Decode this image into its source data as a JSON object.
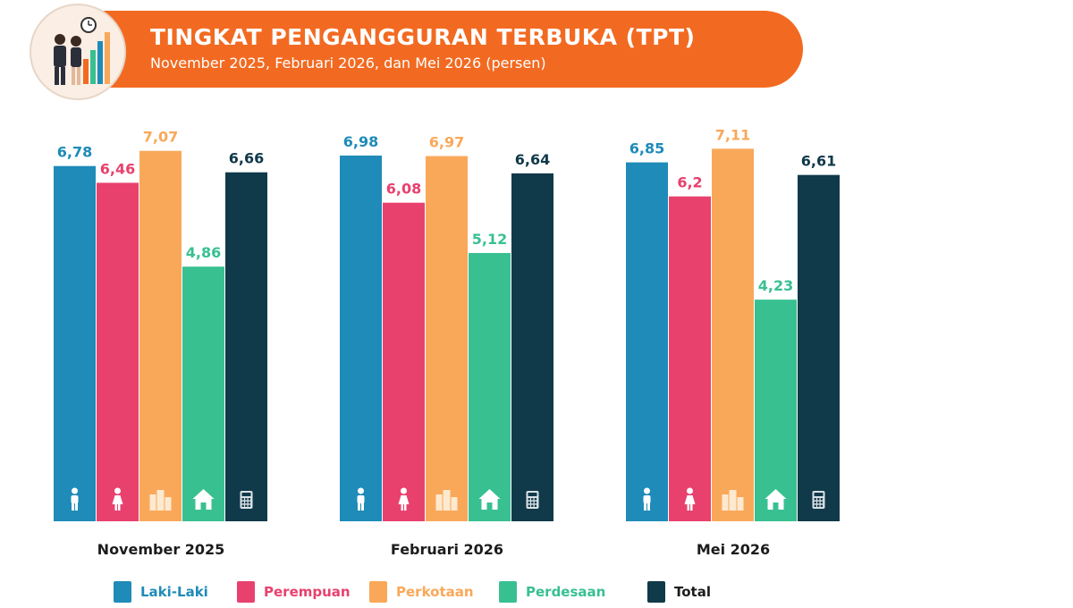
{
  "header": {
    "title": "TINGKAT PENGANGGURAN TERBUKA (TPT)",
    "subtitle": "November 2025, Februari 2026, dan Mei 2026 (persen)"
  },
  "colors": {
    "banner": "#f26a21",
    "Laki-Laki": "#1f8bb8",
    "Perempuan": "#e8416e",
    "Perkotaan": "#f9a85a",
    "Perdesaan": "#38c091",
    "Total": "#10394a"
  },
  "legend": [
    {
      "label": "Laki-Laki",
      "icon": "male-icon"
    },
    {
      "label": "Perempuan",
      "icon": "female-icon"
    },
    {
      "label": "Perkotaan",
      "icon": "city-icon"
    },
    {
      "label": "Perdesaan",
      "icon": "house-icon"
    },
    {
      "label": "Total",
      "icon": "calculator-icon"
    }
  ],
  "chart_data": {
    "type": "bar",
    "title": "TINGKAT PENGANGGURAN TERBUKA (TPT)",
    "subtitle": "November 2025, Februari 2026, dan Mei 2026 (persen)",
    "categories": [
      "November 2025",
      "Februari 2026",
      "Mei 2026"
    ],
    "series": [
      {
        "name": "Laki-Laki",
        "values": [
          6.78,
          6.98,
          6.85
        ],
        "labels": [
          "6,78",
          "6,98",
          "6,85"
        ]
      },
      {
        "name": "Perempuan",
        "values": [
          6.46,
          6.08,
          6.2
        ],
        "labels": [
          "6,46",
          "6,08",
          "6,2"
        ]
      },
      {
        "name": "Perkotaan",
        "values": [
          7.07,
          6.97,
          7.11
        ],
        "labels": [
          "7,07",
          "6,97",
          "7,11"
        ]
      },
      {
        "name": "Perdesaan",
        "values": [
          4.86,
          5.12,
          4.23
        ],
        "labels": [
          "4,86",
          "5,12",
          "4,23"
        ]
      },
      {
        "name": "Total",
        "values": [
          6.66,
          6.64,
          6.61
        ],
        "labels": [
          "6,66",
          "6,64",
          "6,61"
        ]
      }
    ],
    "grid": false,
    "legend_position": "bottom"
  }
}
